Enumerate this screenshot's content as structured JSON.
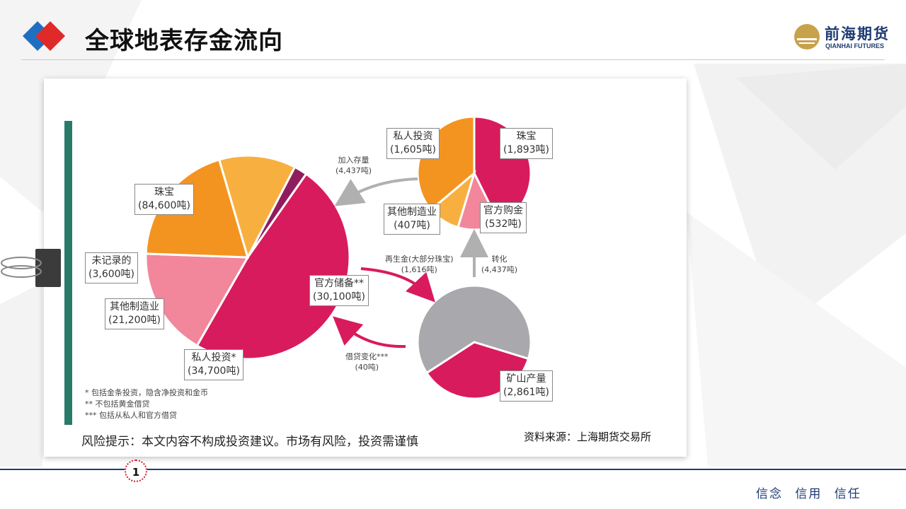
{
  "header": {
    "title": "全球地表存金流向",
    "brand_name": "前海期货",
    "brand_sub": "QIANHAI FUTURES"
  },
  "chart_data": [
    {
      "type": "pie",
      "name": "total",
      "slices": [
        {
          "label": "珠宝",
          "value": 84600,
          "display": "(84,600吨)",
          "color": "#d81b5c"
        },
        {
          "label": "官方储备**",
          "value": 30100,
          "display": "(30,100吨)",
          "color": "#f2869a"
        },
        {
          "label": "私人投资*",
          "value": 34700,
          "display": "(34,700吨)",
          "color": "#f39420"
        },
        {
          "label": "其他制造业",
          "value": 21200,
          "display": "(21,200吨)",
          "color": "#f7b040"
        },
        {
          "label": "未记录的",
          "value": 3600,
          "display": "(3,600吨)",
          "color": "#8f1d5e"
        }
      ]
    },
    {
      "type": "pie",
      "name": "demand",
      "slices": [
        {
          "label": "珠宝",
          "value": 1893,
          "display": "(1,893吨)",
          "color": "#d81b5c"
        },
        {
          "label": "官方购金",
          "value": 532,
          "display": "(532吨)",
          "color": "#f2869a"
        },
        {
          "label": "其他制造业",
          "value": 407,
          "display": "(407吨)",
          "color": "#f7b040"
        },
        {
          "label": "私人投资",
          "value": 1605,
          "display": "(1,605吨)",
          "color": "#f39420"
        }
      ]
    },
    {
      "type": "pie",
      "name": "supply",
      "slices": [
        {
          "label": "矿山产量",
          "value": 2861,
          "display": "(2,861吨)",
          "color": "#a9a9ad"
        },
        {
          "label": "再生金",
          "value": 1616,
          "display": "",
          "color": "#d81b5c"
        }
      ]
    }
  ],
  "flows": {
    "add_stock": {
      "label": "加入存量",
      "value": "(4,437吨)"
    },
    "recycle": {
      "label": "再生金(大部分珠宝)",
      "value": "(1,616吨)"
    },
    "convert": {
      "label": "转化",
      "value": "(4,437吨)"
    },
    "lending": {
      "label": "借贷变化***",
      "value": "(40吨)"
    }
  },
  "notes": [
    "* 包括金条投资，隐含净投资和金币",
    "** 不包括黄金借贷",
    "*** 包括从私人和官方借贷"
  ],
  "risk_note": "风险提示：本文内容不构成投资建议。市场有风险，投资需谨慎",
  "source": "资料来源：上海期货交易所",
  "footer": {
    "page": "1",
    "motto": "信念 信用 信任"
  },
  "colors": {
    "accent_red": "#d0202e",
    "navy": "#1f3b73",
    "green": "#2a7a6a"
  }
}
